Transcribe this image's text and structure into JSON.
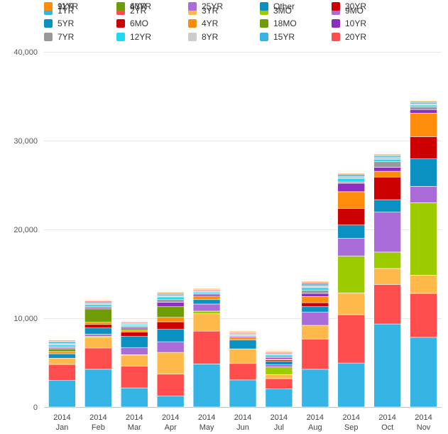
{
  "chart_data": {
    "type": "bar",
    "stacked": true,
    "title": "",
    "xlabel": "",
    "ylabel": "",
    "ylim": [
      0,
      40000
    ],
    "yticks": [
      0,
      10000,
      20000,
      30000,
      40000
    ],
    "ytick_labels": [
      "0",
      "10,000",
      "20,000",
      "30,000",
      "40,000"
    ],
    "grid": true,
    "legend_position": "top",
    "categories": [
      {
        "year": "2014",
        "month": "Jan"
      },
      {
        "year": "2014",
        "month": "Feb"
      },
      {
        "year": "2014",
        "month": "Mar"
      },
      {
        "year": "2014",
        "month": "Apr"
      },
      {
        "year": "2014",
        "month": "May"
      },
      {
        "year": "2014",
        "month": "Jun"
      },
      {
        "year": "2014",
        "month": "Jul"
      },
      {
        "year": "2014",
        "month": "Aug"
      },
      {
        "year": "2014",
        "month": "Sep"
      },
      {
        "year": "2014",
        "month": "Oct"
      },
      {
        "year": "2014",
        "month": "Nov"
      }
    ],
    "series": [
      {
        "name": "1YR",
        "color": "#35b5e5",
        "values": [
          3000,
          4250,
          2150,
          1250,
          4850,
          3050,
          2050,
          4250,
          4950,
          9350,
          7850
        ]
      },
      {
        "name": "2YR",
        "color": "#ff4d4d",
        "values": [
          1800,
          2400,
          2450,
          2450,
          3700,
          1850,
          1150,
          3400,
          5450,
          4450,
          4950
        ]
      },
      {
        "name": "3YR",
        "color": "#ffb94a",
        "values": [
          700,
          1200,
          1250,
          2450,
          1950,
          1650,
          450,
          1550,
          2450,
          1800,
          2050
        ]
      },
      {
        "name": "3MO",
        "color": "#9ccc00",
        "values": [
          0,
          100,
          50,
          0,
          300,
          0,
          850,
          0,
          4150,
          1850,
          8150
        ]
      },
      {
        "name": "9MO",
        "color": "#a96cd8",
        "values": [
          0,
          250,
          800,
          1200,
          800,
          0,
          250,
          1500,
          2000,
          4500,
          1850
        ]
      },
      {
        "name": "5YR",
        "color": "#0a91c2",
        "values": [
          500,
          700,
          1250,
          1400,
          500,
          1000,
          400,
          600,
          1500,
          1400,
          3100
        ]
      },
      {
        "name": "6MO",
        "color": "#cc0000",
        "values": [
          0,
          400,
          500,
          850,
          0,
          0,
          150,
          450,
          1850,
          2550,
          2500
        ]
      },
      {
        "name": "4YR",
        "color": "#ff8c0a",
        "values": [
          250,
          250,
          150,
          500,
          400,
          300,
          100,
          700,
          1900,
          650,
          2650
        ]
      },
      {
        "name": "18MO",
        "color": "#6e9c04",
        "values": [
          300,
          1500,
          200,
          1200,
          0,
          0,
          0,
          0,
          0,
          0,
          0
        ]
      },
      {
        "name": "10YR",
        "color": "#8c2fc1",
        "values": [
          100,
          150,
          150,
          500,
          200,
          100,
          150,
          350,
          950,
          450,
          400
        ]
      },
      {
        "name": "7YR",
        "color": "#999999",
        "values": [
          150,
          150,
          150,
          300,
          100,
          100,
          200,
          350,
          150,
          650,
          300
        ]
      },
      {
        "name": "12YR",
        "color": "#1fd8f2",
        "values": [
          200,
          200,
          100,
          300,
          150,
          100,
          150,
          300,
          400,
          250,
          200
        ]
      },
      {
        "name": "8YR",
        "color": "#cccccc",
        "values": [
          150,
          150,
          100,
          150,
          100,
          100,
          100,
          200,
          200,
          200,
          150
        ]
      },
      {
        "name": "15YR",
        "color": "#35b5e5",
        "values": [
          150,
          150,
          100,
          150,
          100,
          100,
          100,
          200,
          200,
          150,
          150
        ]
      },
      {
        "name": "20YR",
        "color": "#ff4d4d",
        "values": [
          100,
          100,
          100,
          100,
          100,
          100,
          100,
          150,
          100,
          100,
          100
        ]
      },
      {
        "name": "9YR",
        "color": "#ffb94a",
        "values": [
          150,
          100,
          100,
          150,
          100,
          100,
          100,
          150,
          100,
          150,
          100
        ]
      },
      {
        "name": "6YR",
        "color": "#9ccc00",
        "values": [
          50,
          50,
          50,
          50,
          50,
          50,
          50,
          50,
          50,
          50,
          50
        ]
      },
      {
        "name": "25YR",
        "color": "#a96cd8",
        "values": [
          50,
          50,
          50,
          50,
          50,
          50,
          50,
          50,
          50,
          50,
          50
        ]
      },
      {
        "name": "Other",
        "color": "#0a91c2",
        "values": [
          50,
          50,
          50,
          50,
          50,
          50,
          50,
          50,
          50,
          50,
          50
        ]
      },
      {
        "name": "30YR",
        "color": "#cc0000",
        "values": [
          50,
          50,
          50,
          50,
          50,
          50,
          50,
          50,
          50,
          50,
          50
        ]
      },
      {
        "name": "11YR",
        "color": "#ff8c0a",
        "values": [
          50,
          50,
          50,
          50,
          50,
          50,
          50,
          50,
          50,
          50,
          50
        ]
      },
      {
        "name": "40YR",
        "color": "#6e9c04",
        "values": [
          50,
          50,
          50,
          50,
          50,
          50,
          50,
          50,
          50,
          50,
          50
        ]
      }
    ]
  }
}
